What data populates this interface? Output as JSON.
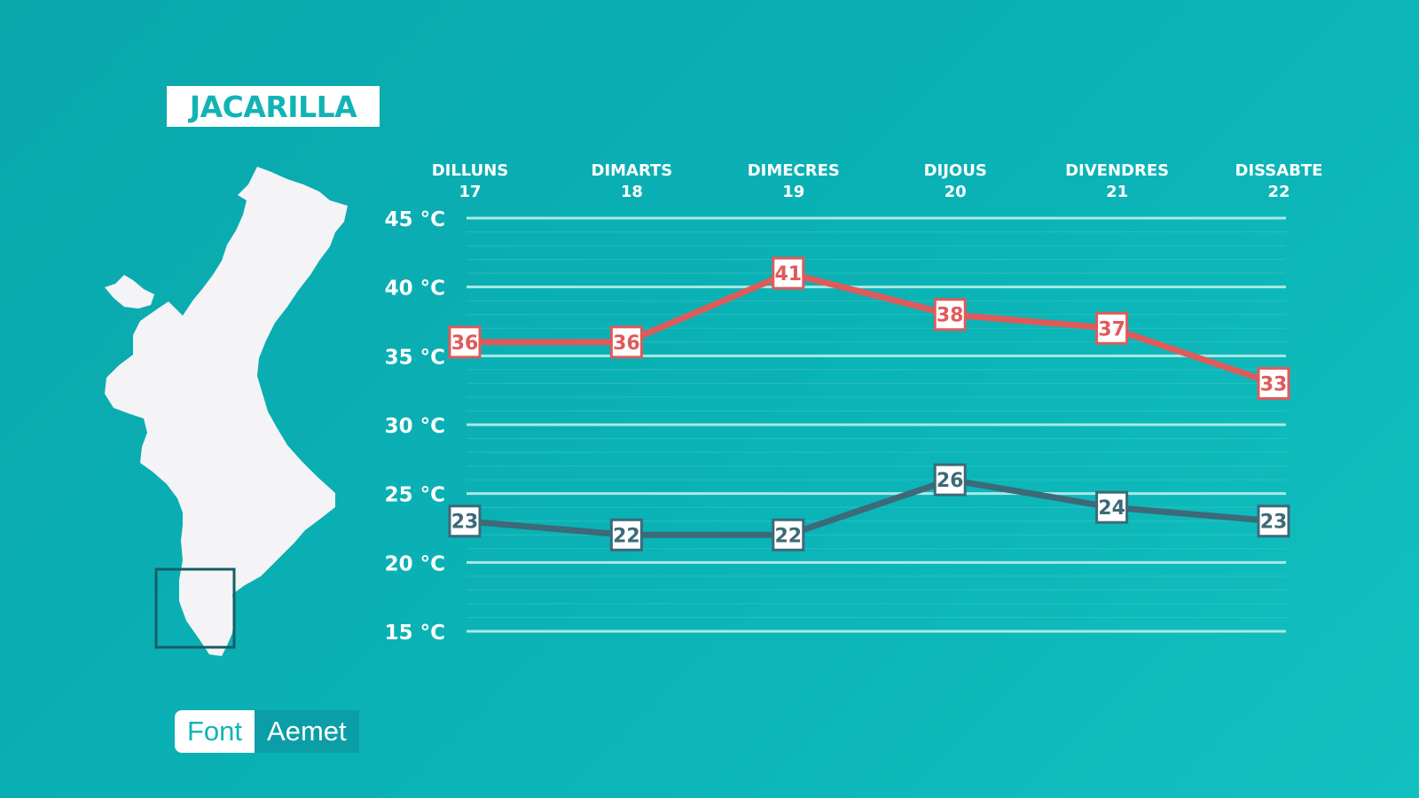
{
  "location": "JACARILLA",
  "source": {
    "label": "Font",
    "value": "Aemet"
  },
  "chart_data": {
    "type": "line",
    "categories": [
      {
        "day": "DILLUNS",
        "date": "17"
      },
      {
        "day": "DIMARTS",
        "date": "18"
      },
      {
        "day": "DIMECRES",
        "date": "19"
      },
      {
        "day": "DIJOUS",
        "date": "20"
      },
      {
        "day": "DIVENDRES",
        "date": "21"
      },
      {
        "day": "DISSABTE",
        "date": "22"
      }
    ],
    "series": [
      {
        "values": [
          36,
          36,
          41,
          38,
          37,
          33
        ],
        "color": "#e05a5a"
      },
      {
        "values": [
          23,
          22,
          22,
          26,
          24,
          23
        ],
        "color": "#3c6a78"
      }
    ],
    "ylim": [
      15,
      45
    ],
    "yticks": [
      45,
      40,
      35,
      30,
      25,
      20,
      15
    ],
    "ytick_labels": [
      "45 °C",
      "40 °C",
      "35 °C",
      "30 °C",
      "25 °C",
      "20 °C",
      "15 °C"
    ],
    "grid": true
  },
  "colors": {
    "background": "#0ab0b3",
    "map_fill": "#f4f3f6",
    "gridline": "#a9e9e6",
    "highlight_box": "#155e68"
  }
}
